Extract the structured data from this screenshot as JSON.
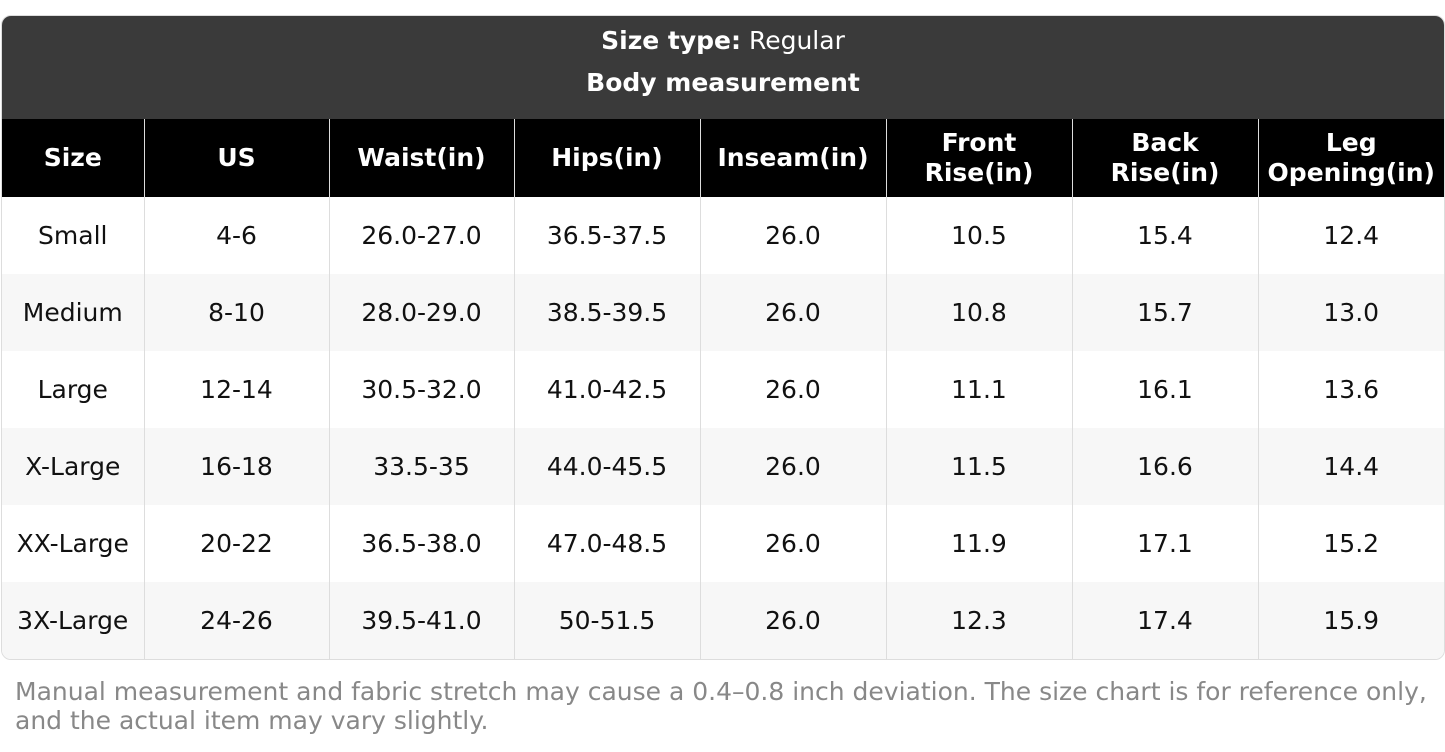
{
  "header": {
    "label": "Size type:",
    "value": "Regular",
    "subtitle": "Body measurement"
  },
  "table": {
    "columns": [
      "Size",
      "US",
      "Waist(in)",
      "Hips(in)",
      "Inseam(in)",
      "Front Rise(in)",
      "Back Rise(in)",
      "Leg Opening(in)"
    ],
    "rows": [
      [
        "Small",
        "4-6",
        "26.0-27.0",
        "36.5-37.5",
        "26.0",
        "10.5",
        "15.4",
        "12.4"
      ],
      [
        "Medium",
        "8-10",
        "28.0-29.0",
        "38.5-39.5",
        "26.0",
        "10.8",
        "15.7",
        "13.0"
      ],
      [
        "Large",
        "12-14",
        "30.5-32.0",
        "41.0-42.5",
        "26.0",
        "11.1",
        "16.1",
        "13.6"
      ],
      [
        "X-Large",
        "16-18",
        "33.5-35",
        "44.0-45.5",
        "26.0",
        "11.5",
        "16.6",
        "14.4"
      ],
      [
        "XX-Large",
        "20-22",
        "36.5-38.0",
        "47.0-48.5",
        "26.0",
        "11.9",
        "17.1",
        "15.2"
      ],
      [
        "3X-Large",
        "24-26",
        "39.5-41.0",
        "50-51.5",
        "26.0",
        "12.3",
        "17.4",
        "15.9"
      ]
    ]
  },
  "note": "Manual measurement and fabric stretch may cause a 0.4–0.8 inch deviation. The size chart is for reference only, and the actual item may vary slightly."
}
